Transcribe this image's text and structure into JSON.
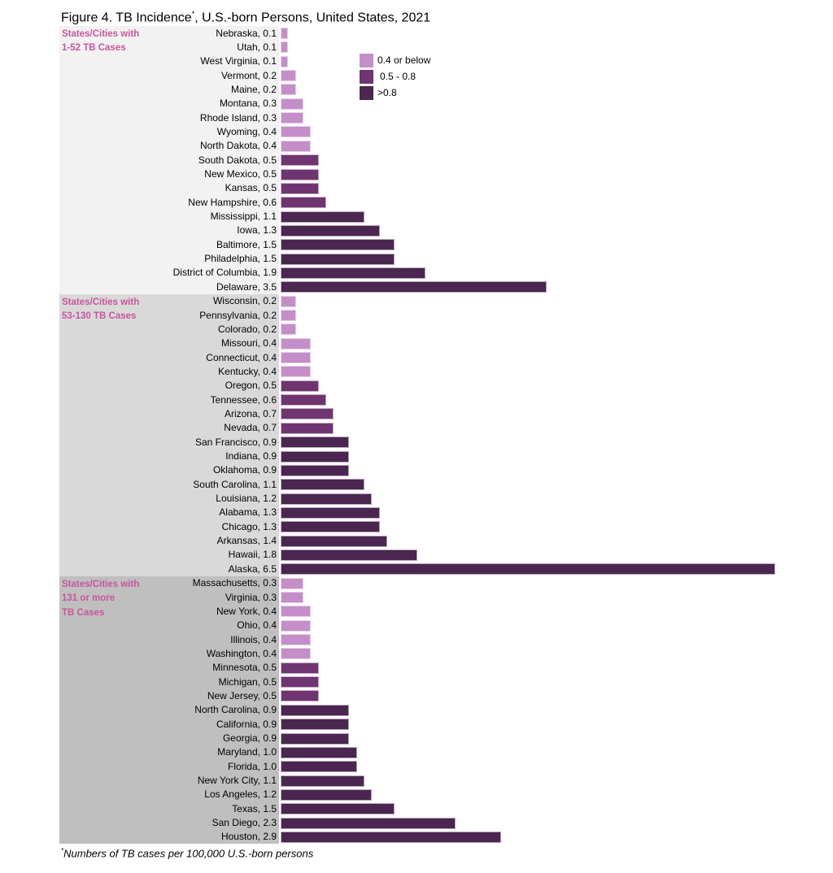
{
  "chart_data": {
    "type": "bar",
    "orientation": "horizontal",
    "title": "Figure 4. TB Incidence",
    "title_marker": "*",
    "title_rest": ", U.S.-born Persons, United States, 2021",
    "footnote_marker": "*",
    "footnote": "Numbers of TB cases per 100,000 U.S.-born persons",
    "xlim": [
      0,
      6.5
    ],
    "grid": false,
    "legend_placement": "top-right",
    "legend": [
      {
        "label": "0.4 or below",
        "color": "#c48fc8"
      },
      {
        "label": "0.5 - 0.8",
        "color": "#6f3570"
      },
      {
        "label": ">0.8",
        "color": "#4a2650"
      }
    ],
    "groups": [
      {
        "label_line1": "States/Cities with",
        "label_line2": "1-52 TB Cases",
        "label_line3": "",
        "background": "#f2f2f2",
        "categories": [
          "Nebraska",
          "Utah",
          "West Virginia",
          "Vermont",
          "Maine",
          "Montana",
          "Rhode Island",
          "Wyoming",
          "North Dakota",
          "South Dakota",
          "New Mexico",
          "Kansas",
          "New Hampshire",
          "Mississippi",
          "Iowa",
          "Baltimore",
          "Philadelphia",
          "District of Columbia",
          "Delaware"
        ],
        "values": [
          0.1,
          0.1,
          0.1,
          0.2,
          0.2,
          0.3,
          0.3,
          0.4,
          0.4,
          0.5,
          0.5,
          0.5,
          0.6,
          1.1,
          1.3,
          1.5,
          1.5,
          1.9,
          3.5
        ]
      },
      {
        "label_line1": "States/Cities with",
        "label_line2": "53-130 TB Cases",
        "label_line3": "",
        "background": "#d9d9d9",
        "categories": [
          "Wisconsin",
          "Pennsylvania",
          "Colorado",
          "Missouri",
          "Connecticut",
          "Kentucky",
          "Oregon",
          "Tennessee",
          "Arizona",
          "Nevada",
          "San Francisco",
          "Indiana",
          "Oklahoma",
          "South Carolina",
          "Louisiana",
          "Alabama",
          "Chicago",
          "Arkansas",
          "Hawaii",
          "Alaska"
        ],
        "values": [
          0.2,
          0.2,
          0.2,
          0.4,
          0.4,
          0.4,
          0.5,
          0.6,
          0.7,
          0.7,
          0.9,
          0.9,
          0.9,
          1.1,
          1.2,
          1.3,
          1.3,
          1.4,
          1.8,
          6.5
        ]
      },
      {
        "label_line1": "States/Cities with",
        "label_line2": "131 or more",
        "label_line3": "TB Cases",
        "background": "#bfbfbf",
        "categories": [
          "Massachusetts",
          "Virginia",
          "New York",
          "Ohio",
          "Illinois",
          "Washington",
          "Minnesota",
          "Michigan",
          "New Jersey",
          "North Carolina",
          "California",
          "Georgia",
          "Maryland",
          "Florida",
          "New York City",
          "Los Angeles",
          "Texas",
          "San Diego",
          "Houston"
        ],
        "values": [
          0.3,
          0.3,
          0.4,
          0.4,
          0.4,
          0.4,
          0.5,
          0.5,
          0.5,
          0.9,
          0.9,
          0.9,
          1.0,
          1.0,
          1.1,
          1.2,
          1.5,
          2.3,
          2.9
        ]
      }
    ]
  }
}
